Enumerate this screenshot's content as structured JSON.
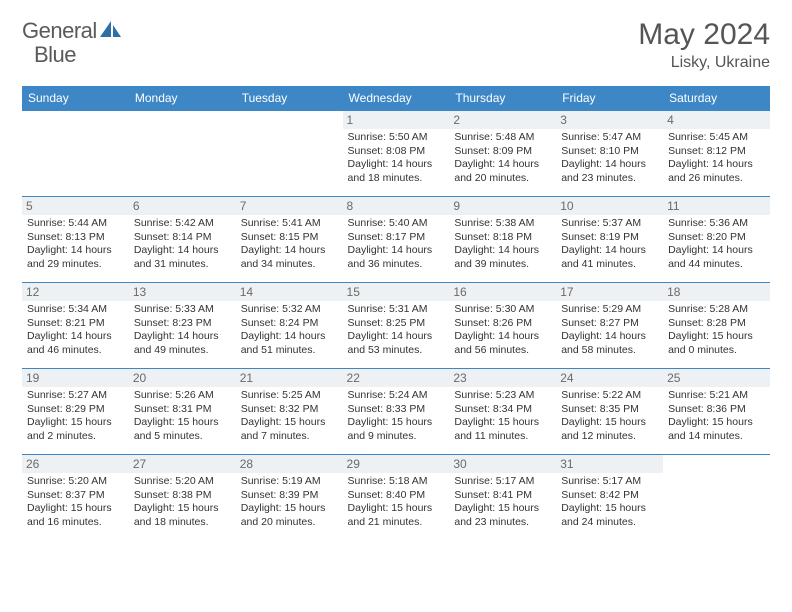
{
  "brand": {
    "name_a": "General",
    "name_b": "Blue"
  },
  "title": "May 2024",
  "location": "Lisky, Ukraine",
  "header_bg": "#3d87c7",
  "header_fg": "#ffffff",
  "daynum_bg": "#eef1f3",
  "border_color": "#3d87c7",
  "logo_color": "#2f6fa8",
  "days_of_week": [
    "Sunday",
    "Monday",
    "Tuesday",
    "Wednesday",
    "Thursday",
    "Friday",
    "Saturday"
  ],
  "weeks": [
    [
      null,
      null,
      null,
      {
        "n": "1",
        "sr": "5:50 AM",
        "ss": "8:08 PM",
        "dl": "14 hours and 18 minutes."
      },
      {
        "n": "2",
        "sr": "5:48 AM",
        "ss": "8:09 PM",
        "dl": "14 hours and 20 minutes."
      },
      {
        "n": "3",
        "sr": "5:47 AM",
        "ss": "8:10 PM",
        "dl": "14 hours and 23 minutes."
      },
      {
        "n": "4",
        "sr": "5:45 AM",
        "ss": "8:12 PM",
        "dl": "14 hours and 26 minutes."
      }
    ],
    [
      {
        "n": "5",
        "sr": "5:44 AM",
        "ss": "8:13 PM",
        "dl": "14 hours and 29 minutes."
      },
      {
        "n": "6",
        "sr": "5:42 AM",
        "ss": "8:14 PM",
        "dl": "14 hours and 31 minutes."
      },
      {
        "n": "7",
        "sr": "5:41 AM",
        "ss": "8:15 PM",
        "dl": "14 hours and 34 minutes."
      },
      {
        "n": "8",
        "sr": "5:40 AM",
        "ss": "8:17 PM",
        "dl": "14 hours and 36 minutes."
      },
      {
        "n": "9",
        "sr": "5:38 AM",
        "ss": "8:18 PM",
        "dl": "14 hours and 39 minutes."
      },
      {
        "n": "10",
        "sr": "5:37 AM",
        "ss": "8:19 PM",
        "dl": "14 hours and 41 minutes."
      },
      {
        "n": "11",
        "sr": "5:36 AM",
        "ss": "8:20 PM",
        "dl": "14 hours and 44 minutes."
      }
    ],
    [
      {
        "n": "12",
        "sr": "5:34 AM",
        "ss": "8:21 PM",
        "dl": "14 hours and 46 minutes."
      },
      {
        "n": "13",
        "sr": "5:33 AM",
        "ss": "8:23 PM",
        "dl": "14 hours and 49 minutes."
      },
      {
        "n": "14",
        "sr": "5:32 AM",
        "ss": "8:24 PM",
        "dl": "14 hours and 51 minutes."
      },
      {
        "n": "15",
        "sr": "5:31 AM",
        "ss": "8:25 PM",
        "dl": "14 hours and 53 minutes."
      },
      {
        "n": "16",
        "sr": "5:30 AM",
        "ss": "8:26 PM",
        "dl": "14 hours and 56 minutes."
      },
      {
        "n": "17",
        "sr": "5:29 AM",
        "ss": "8:27 PM",
        "dl": "14 hours and 58 minutes."
      },
      {
        "n": "18",
        "sr": "5:28 AM",
        "ss": "8:28 PM",
        "dl": "15 hours and 0 minutes."
      }
    ],
    [
      {
        "n": "19",
        "sr": "5:27 AM",
        "ss": "8:29 PM",
        "dl": "15 hours and 2 minutes."
      },
      {
        "n": "20",
        "sr": "5:26 AM",
        "ss": "8:31 PM",
        "dl": "15 hours and 5 minutes."
      },
      {
        "n": "21",
        "sr": "5:25 AM",
        "ss": "8:32 PM",
        "dl": "15 hours and 7 minutes."
      },
      {
        "n": "22",
        "sr": "5:24 AM",
        "ss": "8:33 PM",
        "dl": "15 hours and 9 minutes."
      },
      {
        "n": "23",
        "sr": "5:23 AM",
        "ss": "8:34 PM",
        "dl": "15 hours and 11 minutes."
      },
      {
        "n": "24",
        "sr": "5:22 AM",
        "ss": "8:35 PM",
        "dl": "15 hours and 12 minutes."
      },
      {
        "n": "25",
        "sr": "5:21 AM",
        "ss": "8:36 PM",
        "dl": "15 hours and 14 minutes."
      }
    ],
    [
      {
        "n": "26",
        "sr": "5:20 AM",
        "ss": "8:37 PM",
        "dl": "15 hours and 16 minutes."
      },
      {
        "n": "27",
        "sr": "5:20 AM",
        "ss": "8:38 PM",
        "dl": "15 hours and 18 minutes."
      },
      {
        "n": "28",
        "sr": "5:19 AM",
        "ss": "8:39 PM",
        "dl": "15 hours and 20 minutes."
      },
      {
        "n": "29",
        "sr": "5:18 AM",
        "ss": "8:40 PM",
        "dl": "15 hours and 21 minutes."
      },
      {
        "n": "30",
        "sr": "5:17 AM",
        "ss": "8:41 PM",
        "dl": "15 hours and 23 minutes."
      },
      {
        "n": "31",
        "sr": "5:17 AM",
        "ss": "8:42 PM",
        "dl": "15 hours and 24 minutes."
      },
      null
    ]
  ],
  "labels": {
    "sunrise": "Sunrise:",
    "sunset": "Sunset:",
    "daylight": "Daylight:"
  }
}
